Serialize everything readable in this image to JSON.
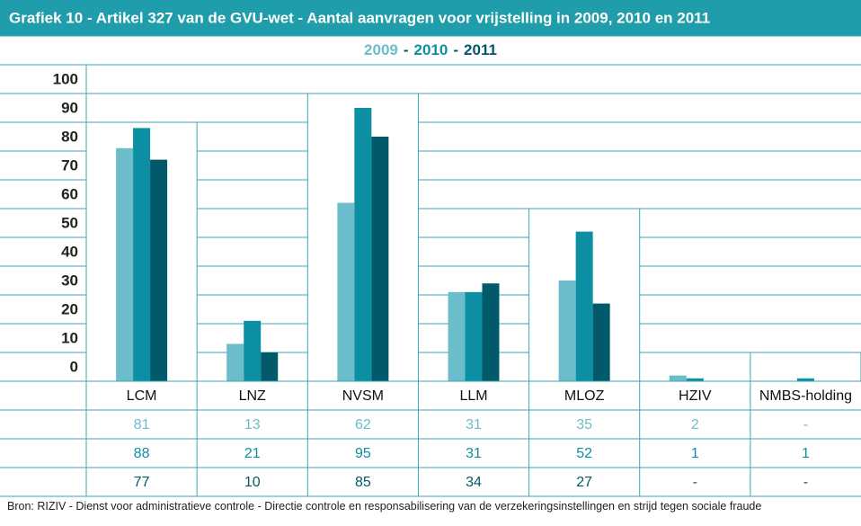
{
  "chart_data": {
    "type": "bar",
    "title": "Grafiek 10 - Artikel 327 van de GVU-wet - Aantal aanvragen voor vrijstelling in 2009, 2010 en 2011",
    "legend_separator": "-",
    "categories": [
      "LCM",
      "LNZ",
      "NVSM",
      "LLM",
      "MLOZ",
      "HZIV",
      "NMBS-holding"
    ],
    "series": [
      {
        "name": "2009",
        "color": "#6bbdcc",
        "values": [
          81,
          13,
          62,
          31,
          35,
          2,
          null
        ],
        "value_labels": [
          "81",
          "13",
          "62",
          "31",
          "35",
          "2",
          "-"
        ]
      },
      {
        "name": "2010",
        "color": "#0c8fa3",
        "values": [
          88,
          21,
          95,
          31,
          52,
          1,
          1
        ],
        "value_labels": [
          "88",
          "21",
          "95",
          "31",
          "52",
          "1",
          "1"
        ]
      },
      {
        "name": "2011",
        "color": "#02596a",
        "values": [
          77,
          10,
          85,
          34,
          27,
          null,
          null
        ],
        "value_labels": [
          "77",
          "10",
          "85",
          "34",
          "27",
          "-",
          "-"
        ]
      }
    ],
    "ylim": [
      0,
      100
    ],
    "yticks": [
      0,
      10,
      20,
      30,
      40,
      50,
      60,
      70,
      80,
      90,
      100
    ],
    "grid": true,
    "source": "Bron: RIZIV - Dienst voor administratieve controle - Directie controle en responsabilisering van de verzekeringsinstellingen en strijd tegen sociale fraude"
  }
}
